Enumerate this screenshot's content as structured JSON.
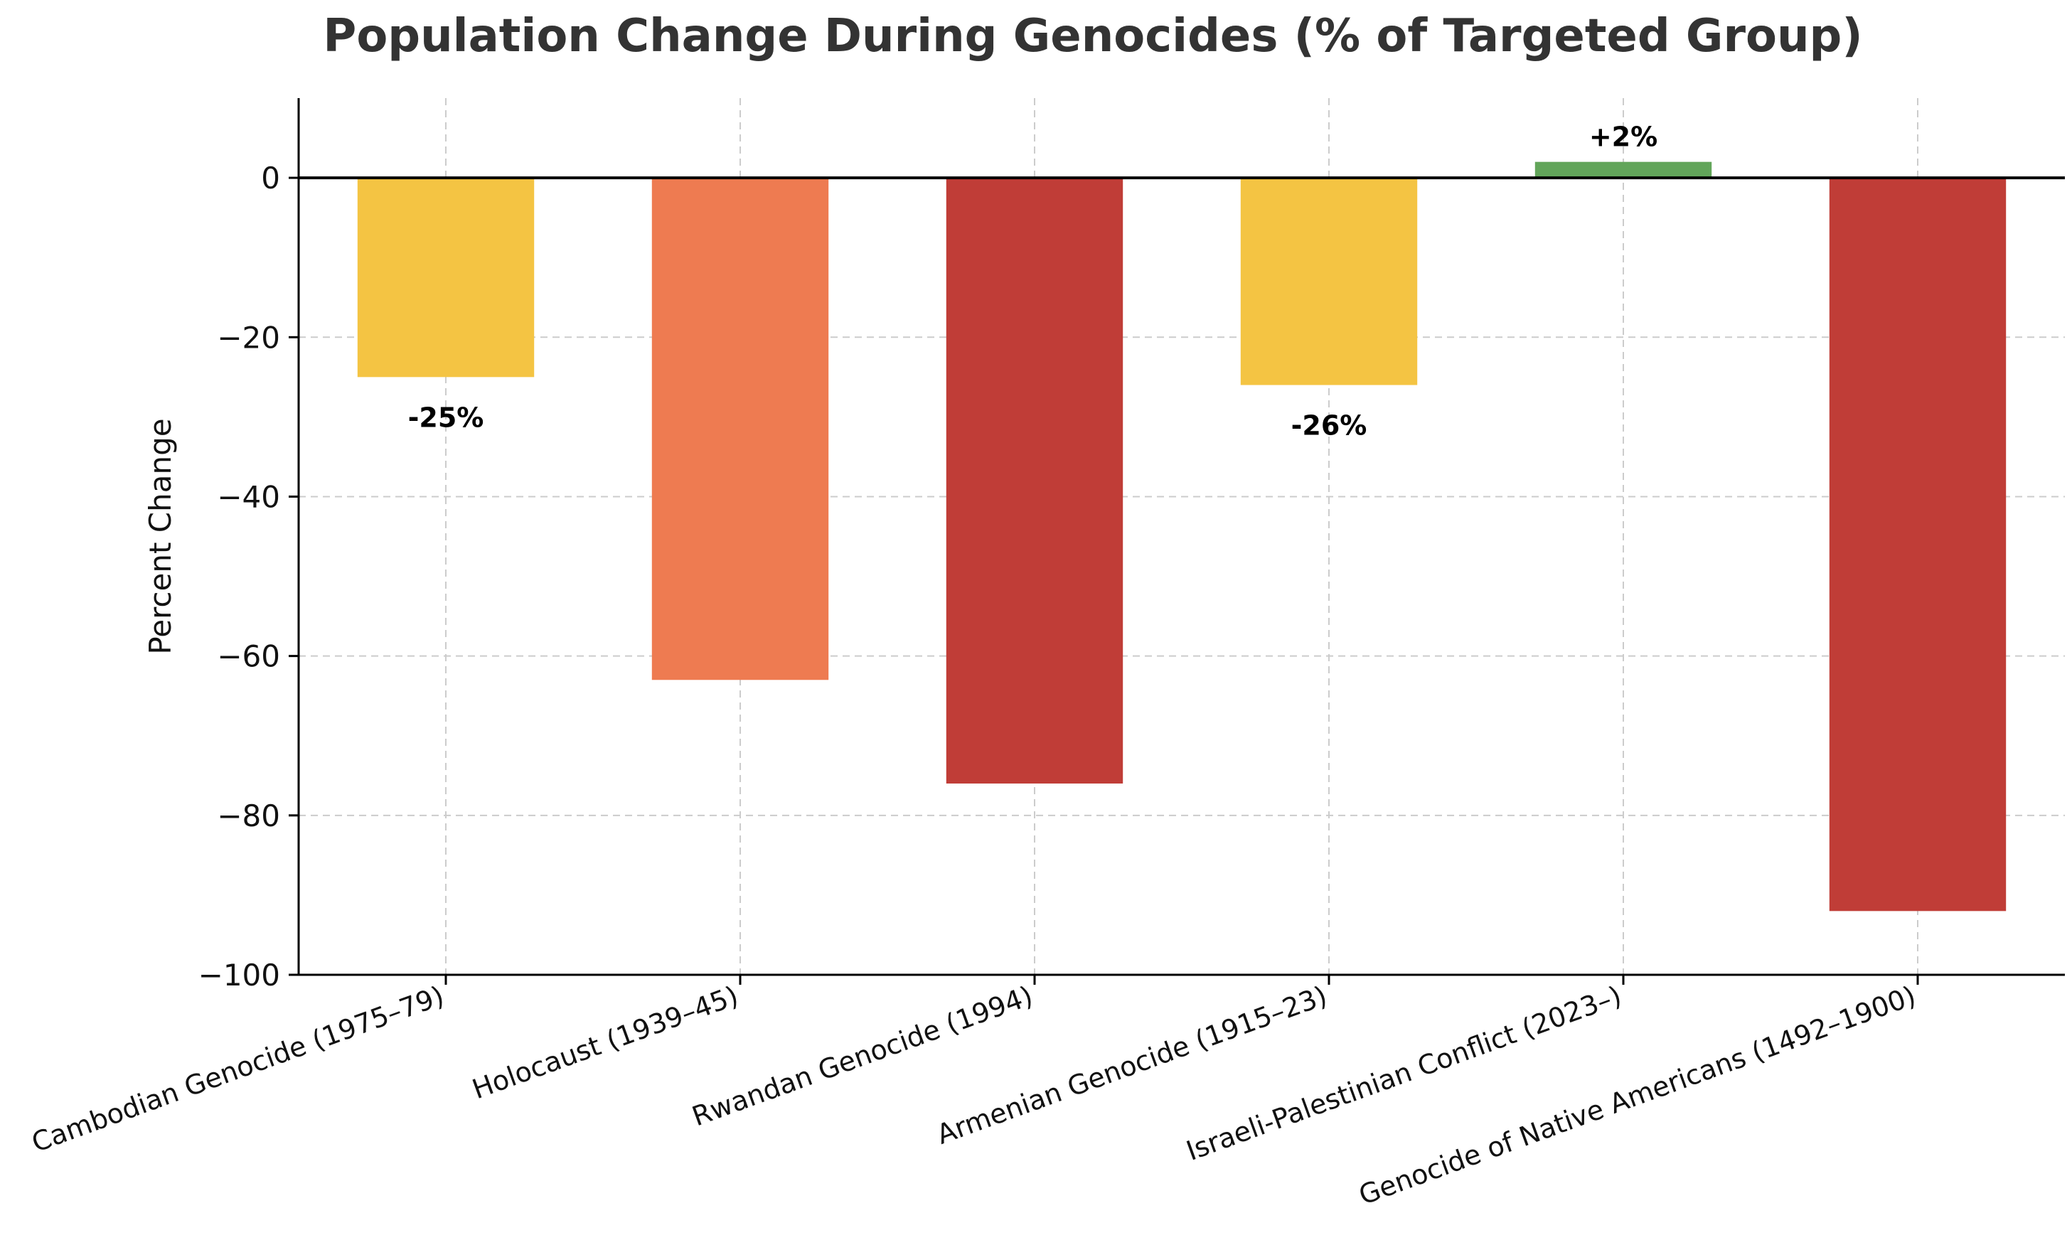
{
  "chart_data": {
    "type": "bar",
    "title": "Population Change During Genocides (% of Targeted Group)",
    "xlabel": "",
    "ylabel": "Percent Change",
    "ylim": [
      -100,
      10
    ],
    "yticks": [
      0,
      -20,
      -40,
      -60,
      -80,
      -100
    ],
    "ytick_labels": [
      "0",
      "−20",
      "−40",
      "−60",
      "−80",
      "−100"
    ],
    "grid": true,
    "categories": [
      "Cambodian Genocide (1975–79)",
      "Holocaust (1939–45)",
      "Rwandan Genocide (1994)",
      "Armenian Genocide (1915–23)",
      "Israeli-Palestinian Conflict (2023–)",
      "Genocide of Native Americans (1492–1900)"
    ],
    "values": [
      -25,
      -63,
      -76,
      -26,
      2,
      -92
    ],
    "colors": [
      "#f4c443",
      "#ee7b51",
      "#c03d37",
      "#f4c443",
      "#62a55a",
      "#c03d37"
    ],
    "data_labels": [
      "-25%",
      "",
      "",
      "-26%",
      "+2%",
      ""
    ]
  }
}
